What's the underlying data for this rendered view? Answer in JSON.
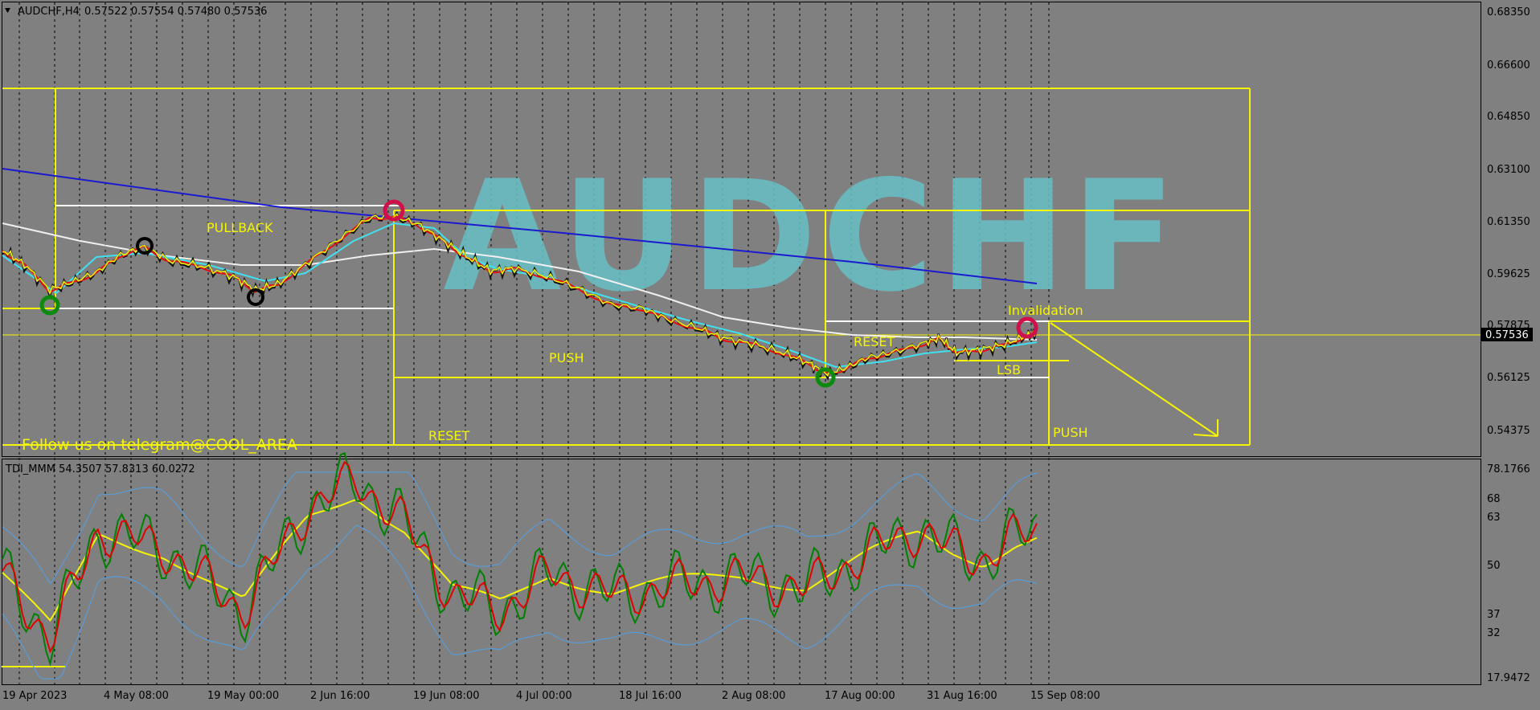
{
  "header": {
    "symbol_info": "AUDCHF,H4",
    "ohlc": "0.57522 0.57554 0.57480 0.57536"
  },
  "watermark": "AUDCHF",
  "annotations": {
    "pullback": "PULLBACK",
    "push_1": "PUSH",
    "reset_1": "RESET",
    "reset_2": "RESET",
    "invalidation": "Invalidation",
    "lsb": "LSB",
    "push_2": "PUSH",
    "telegram": "Follow us on telegram@COOL_AREA"
  },
  "price_axis": {
    "labels": [
      "0.68350",
      "0.66600",
      "0.64850",
      "0.63100",
      "0.61350",
      "0.59625",
      "0.57875",
      "0.56125",
      "0.54375"
    ],
    "current_price": "0.57536"
  },
  "indicator": {
    "title": "TDI_MMM 54.3507 57.8313 60.0272",
    "axis_labels": [
      "78.1766",
      "68",
      "63",
      "50",
      "37",
      "32",
      "17.9472"
    ]
  },
  "time_axis": {
    "labels": [
      "19 Apr 2023",
      "4 May 08:00",
      "19 May 00:00",
      "2 Jun 16:00",
      "19 Jun 08:00",
      "4 Jul 00:00",
      "18 Jul 16:00",
      "2 Aug 08:00",
      "17 Aug 00:00",
      "31 Aug 16:00",
      "15 Sep 08:00"
    ]
  },
  "colors": {
    "background": "#808080",
    "annotation_yellow": "#f5f500",
    "ma_blue": "#1a1ad0",
    "ma_white": "#f0f0f0",
    "ma_cyan": "#40e0f0",
    "ma_red": "#e01010",
    "tdi_green": "#008000",
    "tdi_red": "#e00000",
    "tdi_yellow": "#f5f500",
    "tdi_band": "#5b9bd5",
    "watermark": "#66c0c6"
  },
  "chart_data": {
    "type": "line",
    "title": "AUDCHF,H4",
    "series": [
      {
        "name": "AUDCHF",
        "x": [
          "19 Apr 2023",
          "4 May 08:00",
          "19 May 00:00",
          "2 Jun 16:00",
          "19 Jun 08:00",
          "4 Jul 00:00",
          "18 Jul 16:00",
          "2 Aug 08:00",
          "17 Aug 00:00",
          "31 Aug 16:00",
          "15 Sep 08:00"
        ],
        "values": [
          0.5995,
          0.6,
          0.5905,
          0.604,
          0.603,
          0.593,
          0.585,
          0.575,
          0.563,
          0.575,
          0.5754
        ]
      }
    ],
    "ylim": [
      0.5278,
      0.6875
    ],
    "current_price": 0.57536
  }
}
